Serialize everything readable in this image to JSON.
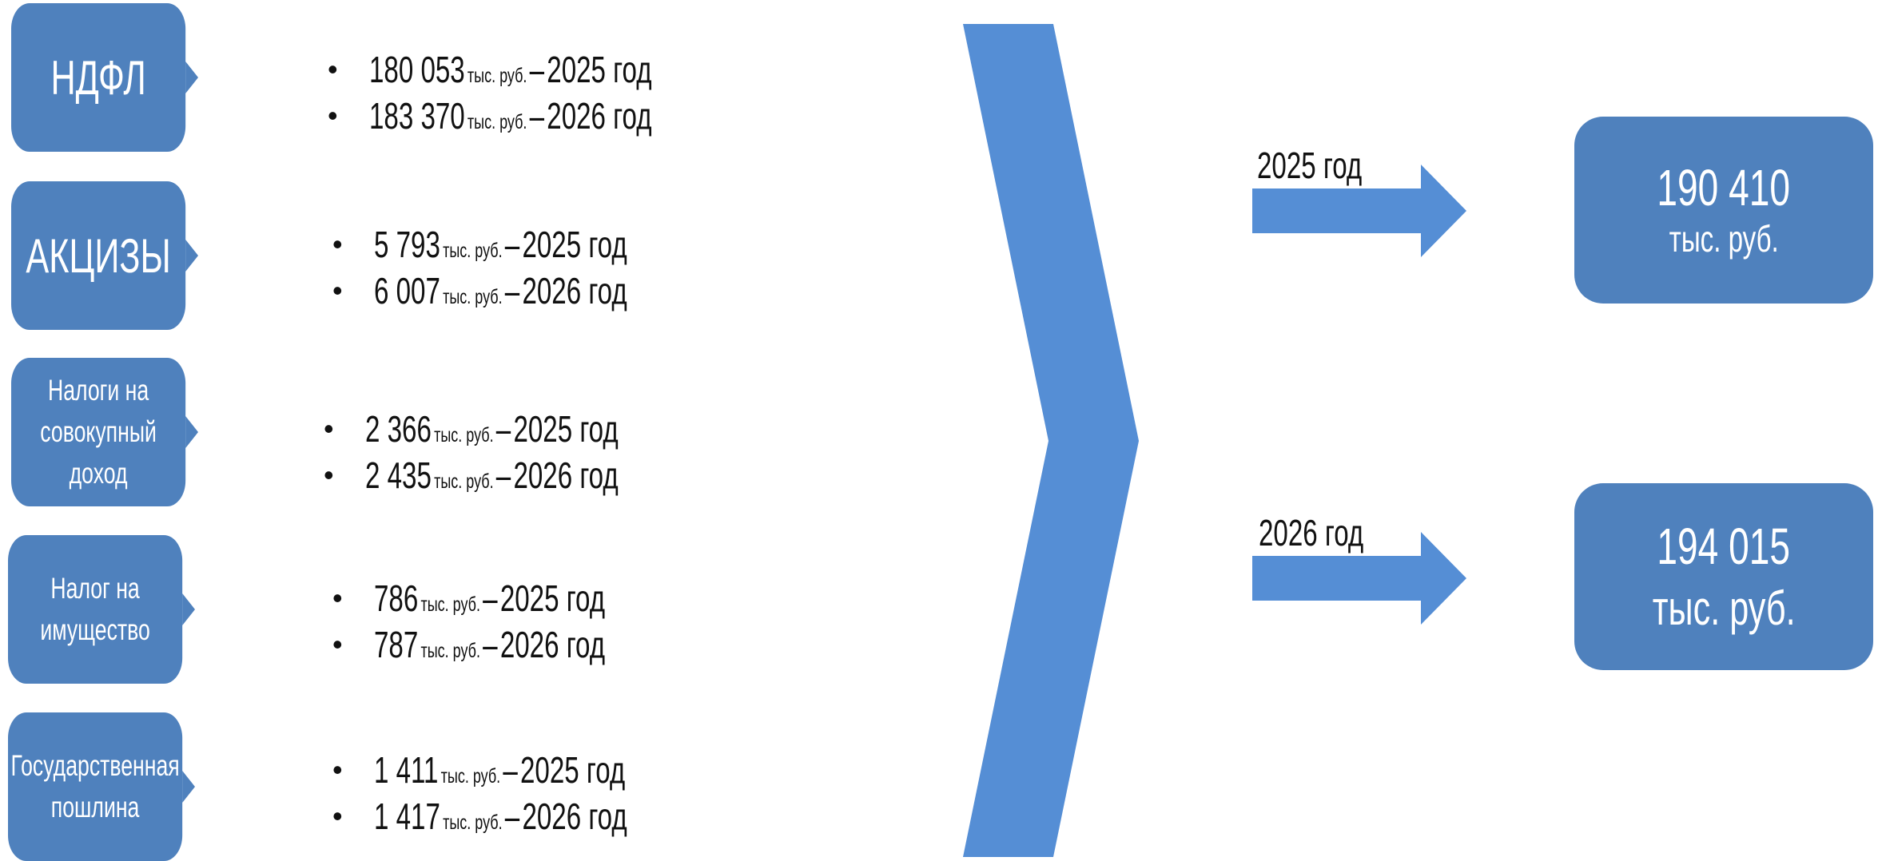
{
  "categories": [
    {
      "label": "НДФЛ",
      "lines": [
        {
          "value": "180 053",
          "unit": "тыс. руб.",
          "dash": "–",
          "year": "2025 год"
        },
        {
          "value": "183 370",
          "unit": "тыс. руб.",
          "dash": "–",
          "year": "2026 год"
        }
      ]
    },
    {
      "label": "АКЦИЗЫ",
      "lines": [
        {
          "value": "5 793",
          "unit": "тыс. руб.",
          "dash": "–",
          "year": "2025 год"
        },
        {
          "value": "6 007",
          "unit": "тыс. руб.",
          "dash": "–",
          "year": "2026 год"
        }
      ]
    },
    {
      "label_line1": "Налоги на",
      "label_line2": "совокупный доход",
      "lines": [
        {
          "value": "2 366",
          "unit": "тыс. руб.",
          "dash": "–",
          "year": "2025 год"
        },
        {
          "value": "2 435",
          "unit": "тыс. руб.",
          "dash": "–",
          "year": "2026 год"
        }
      ]
    },
    {
      "label_line1": "Налог на",
      "label_line2": "имущество",
      "lines": [
        {
          "value": "786",
          "unit": "тыс. руб.",
          "dash": "–",
          "year": "2025 год"
        },
        {
          "value": "787",
          "unit": "тыс. руб.",
          "dash": "–",
          "year": "2026 год"
        }
      ]
    },
    {
      "label_line1": "Государственная",
      "label_line2": "пошлина",
      "lines": [
        {
          "value": "1 411",
          "unit": "тыс. руб.",
          "dash": "–",
          "year": "2025 год"
        },
        {
          "value": "1 417",
          "unit": "тыс. руб.",
          "dash": "–",
          "year": "2026 год"
        }
      ]
    }
  ],
  "totals": [
    {
      "year_label": "2025 год",
      "value": "190 410",
      "unit": "тыс. руб."
    },
    {
      "year_label": "2026 год",
      "value": "194 015",
      "unit": "тыс. руб."
    }
  ],
  "bullet": "•",
  "colors": {
    "box": "#4f81bd",
    "arrow": "#558ed5",
    "text": "#111111"
  }
}
